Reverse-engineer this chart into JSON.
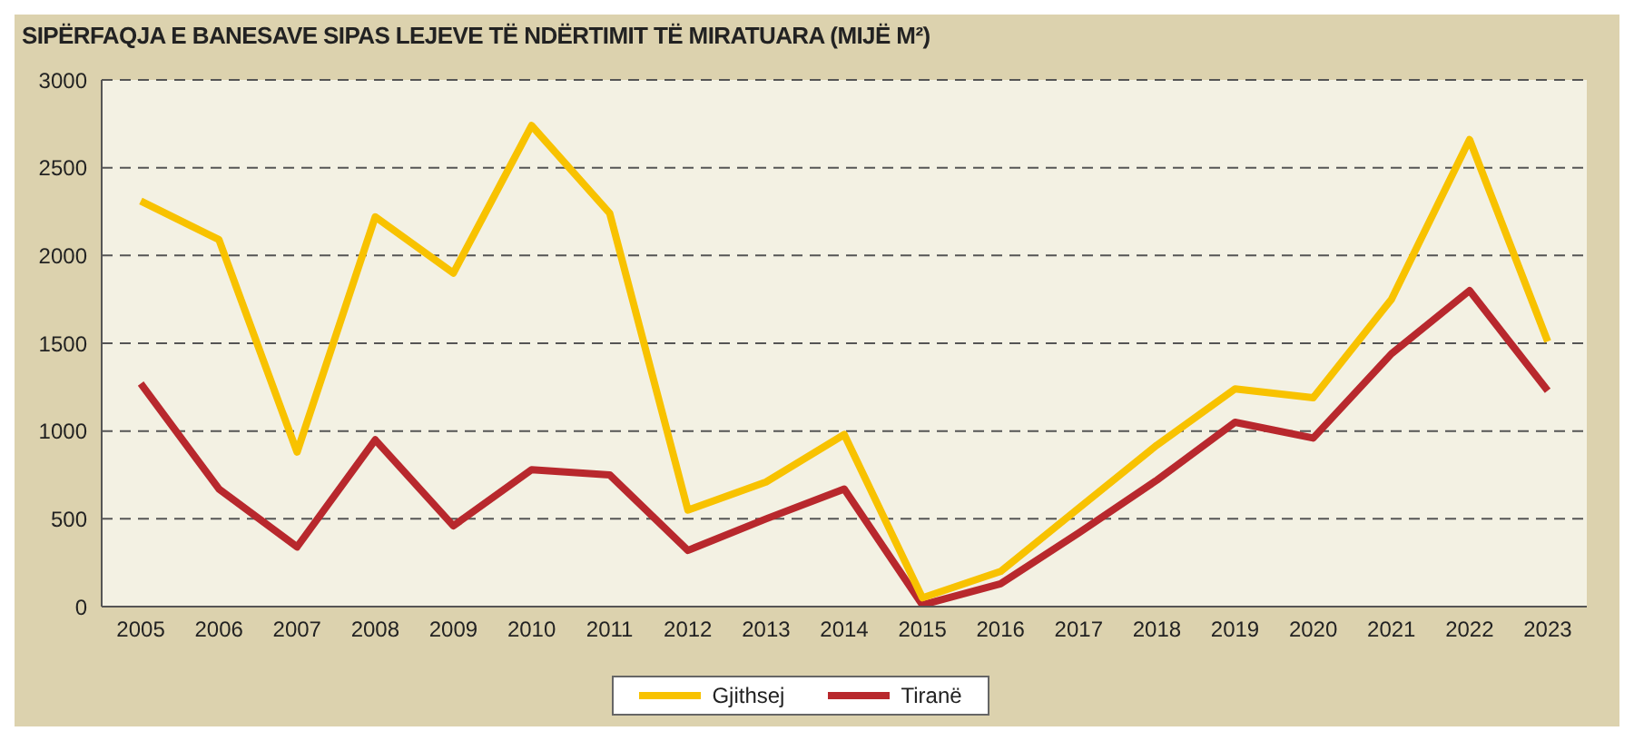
{
  "chart_data": {
    "type": "line",
    "title": "SIPËRFAQJA E BANESAVE SIPAS LEJEVE TË NDËRTIMIT TË MIRATUARA (MIJË M²)",
    "categories": [
      "2005",
      "2006",
      "2007",
      "2008",
      "2009",
      "2010",
      "2011",
      "2012",
      "2013",
      "2014",
      "2015",
      "2016",
      "2017",
      "2018",
      "2019",
      "2020",
      "2021",
      "2022",
      "2023"
    ],
    "series": [
      {
        "name": "Tiranë",
        "color": "#b8282d",
        "values": [
          1270,
          670,
          340,
          950,
          460,
          780,
          750,
          320,
          500,
          670,
          10,
          130,
          420,
          720,
          1050,
          960,
          1440,
          1800,
          1230
        ]
      },
      {
        "name": "Gjithsej",
        "color": "#f8c200",
        "values": [
          2310,
          2090,
          880,
          2220,
          1900,
          2740,
          2240,
          550,
          710,
          980,
          50,
          200,
          560,
          920,
          1240,
          1190,
          1750,
          2660,
          1510
        ]
      }
    ],
    "ylim": [
      0,
      3000
    ],
    "yticks": [
      0,
      500,
      1000,
      1500,
      2000,
      2500,
      3000
    ],
    "grid": "y",
    "legend": "bottom",
    "marker": "none",
    "line_style": "solid"
  }
}
